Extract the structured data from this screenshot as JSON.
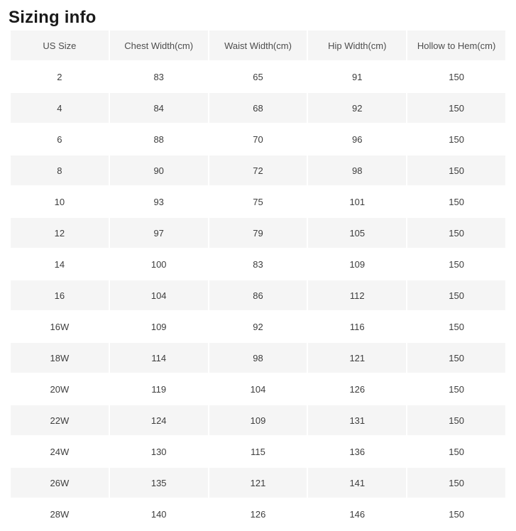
{
  "page": {
    "title": "Sizing info"
  },
  "colors": {
    "header_bg": "#f5f5f5",
    "stripe_bg": "#f5f5f5",
    "row_bg": "#ffffff",
    "header_text": "#4d4d4d",
    "cell_text": "#3d3d3d",
    "title_text": "#1a1a1a"
  },
  "table": {
    "columns": [
      "US Size",
      "Chest Width(cm)",
      "Waist Width(cm)",
      "Hip Width(cm)",
      "Hollow to Hem(cm)"
    ],
    "rows": [
      [
        "2",
        "83",
        "65",
        "91",
        "150"
      ],
      [
        "4",
        "84",
        "68",
        "92",
        "150"
      ],
      [
        "6",
        "88",
        "70",
        "96",
        "150"
      ],
      [
        "8",
        "90",
        "72",
        "98",
        "150"
      ],
      [
        "10",
        "93",
        "75",
        "101",
        "150"
      ],
      [
        "12",
        "97",
        "79",
        "105",
        "150"
      ],
      [
        "14",
        "100",
        "83",
        "109",
        "150"
      ],
      [
        "16",
        "104",
        "86",
        "112",
        "150"
      ],
      [
        "16W",
        "109",
        "92",
        "116",
        "150"
      ],
      [
        "18W",
        "114",
        "98",
        "121",
        "150"
      ],
      [
        "20W",
        "119",
        "104",
        "126",
        "150"
      ],
      [
        "22W",
        "124",
        "109",
        "131",
        "150"
      ],
      [
        "24W",
        "130",
        "115",
        "136",
        "150"
      ],
      [
        "26W",
        "135",
        "121",
        "141",
        "150"
      ],
      [
        "28W",
        "140",
        "126",
        "146",
        "150"
      ]
    ]
  }
}
